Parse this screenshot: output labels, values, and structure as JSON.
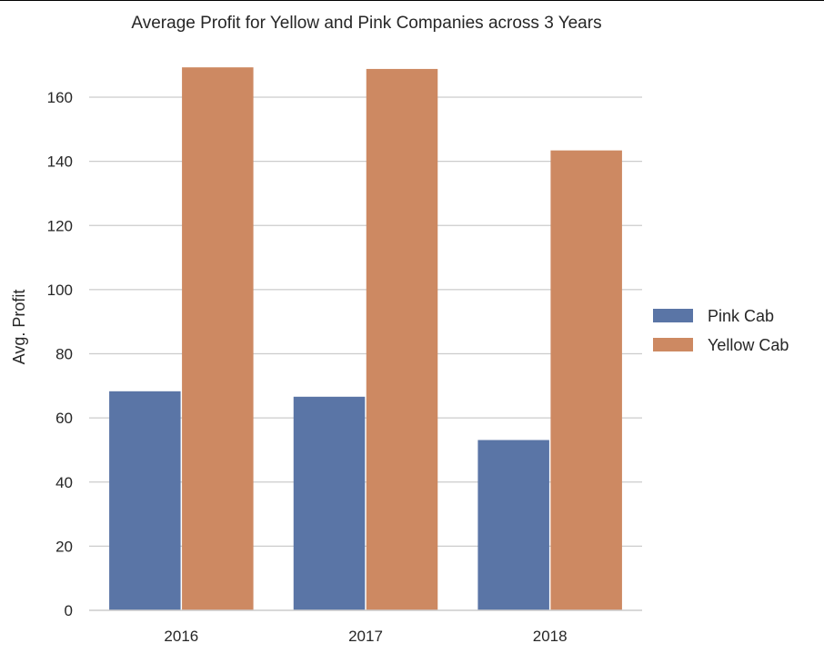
{
  "chart_data": {
    "type": "bar",
    "title": "Average Profit for Yellow and Pink Companies across 3 Years",
    "xlabel": "",
    "ylabel": "Avg. Profit",
    "categories": [
      "2016",
      "2017",
      "2018"
    ],
    "series": [
      {
        "name": "Pink Cab",
        "color": "#5a75a6",
        "values": [
          68.3,
          66.6,
          53.1
        ]
      },
      {
        "name": "Yellow Cab",
        "color": "#cd8962",
        "values": [
          169.3,
          168.8,
          143.4
        ]
      }
    ],
    "ylim": [
      0,
      170
    ],
    "yticks": [
      0,
      20,
      40,
      60,
      80,
      100,
      120,
      140,
      160
    ],
    "grid": "horizontal",
    "legend_position": "center-right"
  }
}
